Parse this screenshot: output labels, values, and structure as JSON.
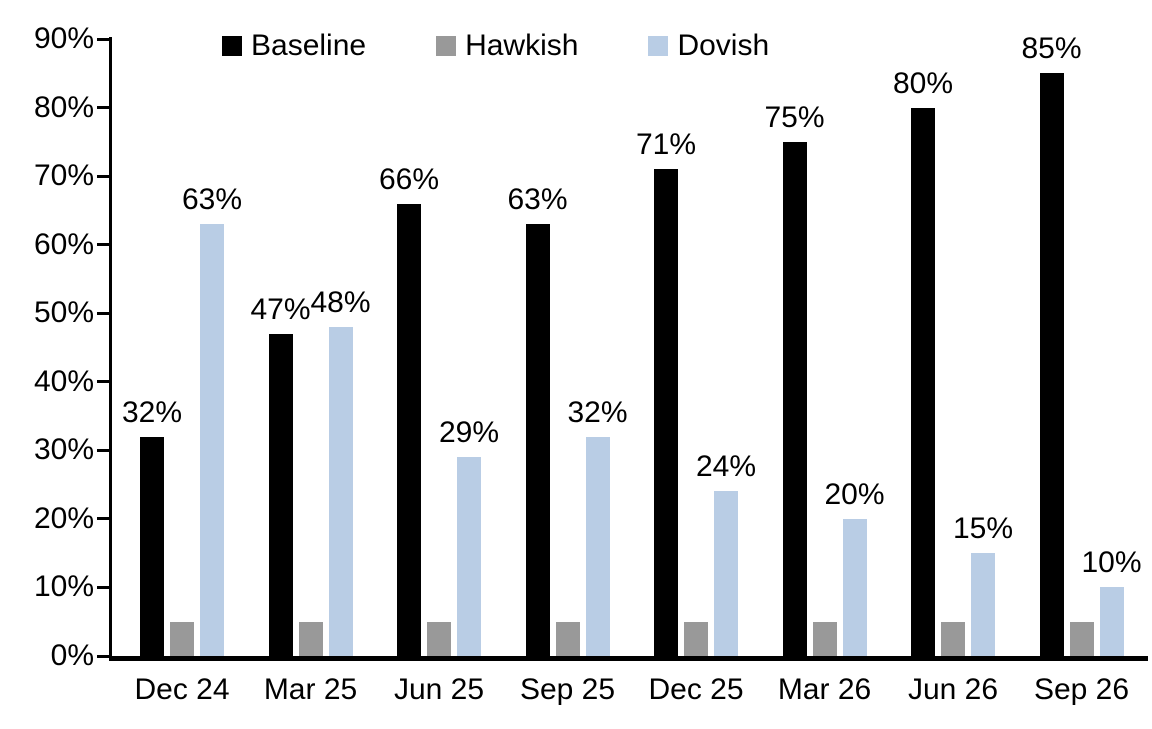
{
  "chart_data": {
    "type": "bar",
    "title": "",
    "xlabel": "",
    "ylabel": "",
    "categories": [
      "Dec 24",
      "Mar 25",
      "Jun 25",
      "Sep 25",
      "Dec 25",
      "Mar 26",
      "Jun 26",
      "Sep 26"
    ],
    "series": [
      {
        "name": "Baseline",
        "color": "#000000",
        "values": [
          32,
          47,
          66,
          63,
          71,
          75,
          80,
          85
        ],
        "labels": [
          "32%",
          "47%",
          "66%",
          "63%",
          "71%",
          "75%",
          "80%",
          "85%"
        ],
        "show_labels": true
      },
      {
        "name": "Hawkish",
        "color": "#999999",
        "values": [
          5,
          5,
          5,
          5,
          5,
          5,
          5,
          5
        ],
        "labels": [],
        "show_labels": false
      },
      {
        "name": "Dovish",
        "color": "#b9cde5",
        "values": [
          63,
          48,
          29,
          32,
          24,
          20,
          15,
          10
        ],
        "labels": [
          "63%",
          "48%",
          "29%",
          "32%",
          "24%",
          "20%",
          "15%",
          "10%"
        ],
        "show_labels": true
      }
    ],
    "ylim": [
      0,
      90
    ],
    "ytick_labels": [
      "0%",
      "10%",
      "20%",
      "30%",
      "40%",
      "50%",
      "60%",
      "70%",
      "80%",
      "90%"
    ],
    "grid": false,
    "legend_position": "top"
  },
  "colors": {
    "axis": "#000000",
    "text": "#000000",
    "background": "#ffffff"
  }
}
